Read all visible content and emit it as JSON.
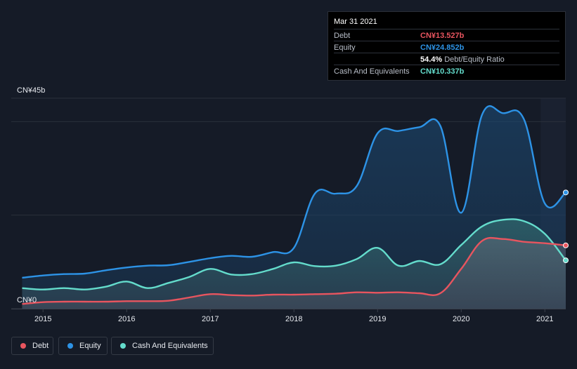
{
  "colors": {
    "debt": "#e8555f",
    "equity": "#2d93e6",
    "cash": "#64dccc",
    "background": "#151b27",
    "grid": "#2a303b"
  },
  "tooltip": {
    "date": "Mar 31 2021",
    "rows": [
      {
        "name": "Debt",
        "value": "CN¥13.527b",
        "color": "#e8555f",
        "suffix": ""
      },
      {
        "name": "Equity",
        "value": "CN¥24.852b",
        "color": "#2d93e6",
        "suffix": ""
      },
      {
        "name": "",
        "value": "54.4%",
        "color": "#ffffff",
        "suffix": "Debt/Equity Ratio"
      },
      {
        "name": "Cash And Equivalents",
        "value": "CN¥10.337b",
        "color": "#64dccc",
        "suffix": ""
      }
    ]
  },
  "legend": [
    {
      "label": "Debt",
      "color": "#e8555f"
    },
    {
      "label": "Equity",
      "color": "#2d93e6"
    },
    {
      "label": "Cash And Equivalents",
      "color": "#64dccc"
    }
  ],
  "chart_data": {
    "type": "area",
    "title": "",
    "y_top_label": "CN¥45b",
    "y_bottom_label": "CN¥0",
    "ylim": [
      0,
      45
    ],
    "xlim": [
      2014.62,
      2021.25
    ],
    "x_ticks": [
      {
        "value": 2015,
        "label": "2015"
      },
      {
        "value": 2016,
        "label": "2016"
      },
      {
        "value": 2017,
        "label": "2017"
      },
      {
        "value": 2018,
        "label": "2018"
      },
      {
        "value": 2019,
        "label": "2019"
      },
      {
        "value": 2020,
        "label": "2020"
      },
      {
        "value": 2021,
        "label": "2021"
      }
    ],
    "gridlines": [
      0,
      20,
      40,
      45
    ],
    "series": [
      {
        "name": "Equity",
        "color": "#2d93e6",
        "points": [
          [
            2014.75,
            6.6
          ],
          [
            2015.0,
            7.1
          ],
          [
            2015.25,
            7.4
          ],
          [
            2015.5,
            7.5
          ],
          [
            2015.75,
            8.2
          ],
          [
            2016.0,
            8.8
          ],
          [
            2016.25,
            9.2
          ],
          [
            2016.5,
            9.3
          ],
          [
            2016.75,
            10.0
          ],
          [
            2017.0,
            10.8
          ],
          [
            2017.25,
            11.3
          ],
          [
            2017.5,
            11.1
          ],
          [
            2017.75,
            12.1
          ],
          [
            2018.0,
            13.0
          ],
          [
            2018.25,
            24.6
          ],
          [
            2018.5,
            24.6
          ],
          [
            2018.75,
            26.2
          ],
          [
            2019.0,
            37.5
          ],
          [
            2019.25,
            38.0
          ],
          [
            2019.5,
            38.8
          ],
          [
            2019.75,
            39.1
          ],
          [
            2020.0,
            20.5
          ],
          [
            2020.25,
            41.5
          ],
          [
            2020.5,
            41.8
          ],
          [
            2020.75,
            40.5
          ],
          [
            2021.0,
            22.5
          ],
          [
            2021.25,
            24.85
          ]
        ]
      },
      {
        "name": "Cash And Equivalents",
        "color": "#64dccc",
        "points": [
          [
            2014.75,
            4.4
          ],
          [
            2015.0,
            4.1
          ],
          [
            2015.25,
            4.4
          ],
          [
            2015.5,
            4.1
          ],
          [
            2015.75,
            4.7
          ],
          [
            2016.0,
            5.8
          ],
          [
            2016.25,
            4.4
          ],
          [
            2016.5,
            5.5
          ],
          [
            2016.75,
            6.8
          ],
          [
            2017.0,
            8.5
          ],
          [
            2017.25,
            7.3
          ],
          [
            2017.5,
            7.4
          ],
          [
            2017.75,
            8.5
          ],
          [
            2018.0,
            9.9
          ],
          [
            2018.25,
            9.1
          ],
          [
            2018.5,
            9.2
          ],
          [
            2018.75,
            10.6
          ],
          [
            2019.0,
            13.0
          ],
          [
            2019.25,
            9.2
          ],
          [
            2019.5,
            10.2
          ],
          [
            2019.75,
            9.5
          ],
          [
            2020.0,
            13.6
          ],
          [
            2020.25,
            17.6
          ],
          [
            2020.5,
            19.0
          ],
          [
            2020.75,
            18.7
          ],
          [
            2021.0,
            16.0
          ],
          [
            2021.25,
            10.34
          ]
        ]
      },
      {
        "name": "Debt",
        "color": "#e8555f",
        "points": [
          [
            2014.75,
            1.0
          ],
          [
            2015.0,
            1.4
          ],
          [
            2015.25,
            1.5
          ],
          [
            2015.5,
            1.5
          ],
          [
            2015.75,
            1.5
          ],
          [
            2016.0,
            1.6
          ],
          [
            2016.25,
            1.6
          ],
          [
            2016.5,
            1.7
          ],
          [
            2016.75,
            2.4
          ],
          [
            2017.0,
            3.1
          ],
          [
            2017.25,
            2.9
          ],
          [
            2017.5,
            2.8
          ],
          [
            2017.75,
            3.0
          ],
          [
            2018.0,
            3.0
          ],
          [
            2018.25,
            3.1
          ],
          [
            2018.5,
            3.2
          ],
          [
            2018.75,
            3.5
          ],
          [
            2019.0,
            3.4
          ],
          [
            2019.25,
            3.5
          ],
          [
            2019.5,
            3.3
          ],
          [
            2019.75,
            3.3
          ],
          [
            2020.0,
            8.5
          ],
          [
            2020.25,
            14.5
          ],
          [
            2020.5,
            14.9
          ],
          [
            2020.75,
            14.3
          ],
          [
            2021.0,
            14.0
          ],
          [
            2021.25,
            13.53
          ]
        ]
      }
    ]
  }
}
